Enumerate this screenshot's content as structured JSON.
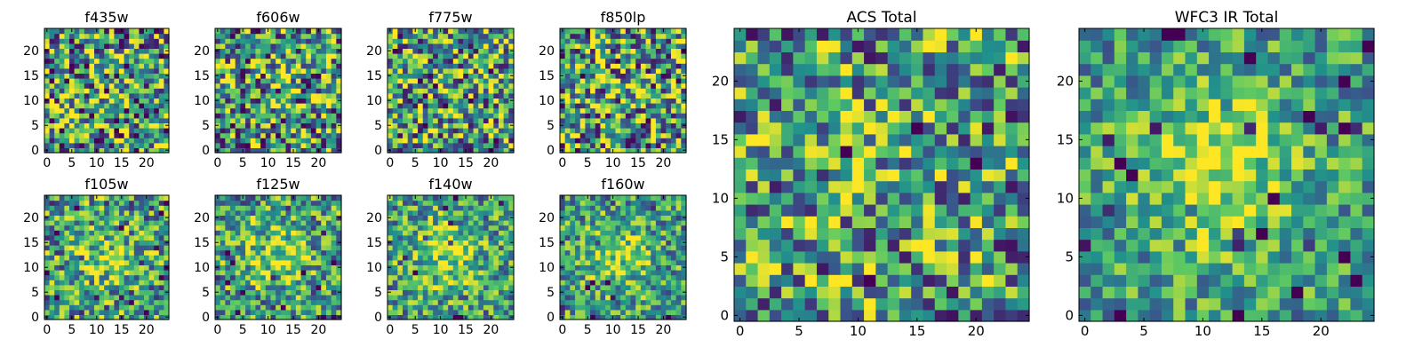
{
  "colormap": [
    "#440154",
    "#3b528b",
    "#21918c",
    "#5ec962",
    "#fde725"
  ],
  "chart_data": [
    {
      "type": "heatmap",
      "title": "f435w",
      "xlabel": "",
      "ylabel": "",
      "xlim": [
        0,
        24
      ],
      "ylim": [
        0,
        24
      ],
      "xticks": [
        0,
        5,
        10,
        15,
        20
      ],
      "yticks": [
        0,
        5,
        10,
        15,
        20
      ],
      "grid": false,
      "size": 25,
      "seed": 11,
      "center_strength": 0.0
    },
    {
      "type": "heatmap",
      "title": "f606w",
      "xlabel": "",
      "ylabel": "",
      "xlim": [
        0,
        24
      ],
      "ylim": [
        0,
        24
      ],
      "xticks": [
        0,
        5,
        10,
        15,
        20
      ],
      "yticks": [
        0,
        5,
        10,
        15,
        20
      ],
      "grid": false,
      "size": 25,
      "seed": 23,
      "center_strength": 0.05
    },
    {
      "type": "heatmap",
      "title": "f775w",
      "xlabel": "",
      "ylabel": "",
      "xlim": [
        0,
        24
      ],
      "ylim": [
        0,
        24
      ],
      "xticks": [
        0,
        5,
        10,
        15,
        20
      ],
      "yticks": [
        0,
        5,
        10,
        15,
        20
      ],
      "grid": false,
      "size": 25,
      "seed": 37,
      "center_strength": 0.08
    },
    {
      "type": "heatmap",
      "title": "f850lp",
      "xlabel": "",
      "ylabel": "",
      "xlim": [
        0,
        24
      ],
      "ylim": [
        0,
        24
      ],
      "xticks": [
        0,
        5,
        10,
        15,
        20
      ],
      "yticks": [
        0,
        5,
        10,
        15,
        20
      ],
      "grid": false,
      "size": 25,
      "seed": 41,
      "center_strength": 0.05
    },
    {
      "type": "heatmap",
      "title": "ACS Total",
      "xlabel": "",
      "ylabel": "",
      "xlim": [
        0,
        24
      ],
      "ylim": [
        0,
        24
      ],
      "xticks": [
        0,
        5,
        10,
        15,
        20
      ],
      "yticks": [
        0,
        5,
        10,
        15,
        20
      ],
      "grid": false,
      "size": 25,
      "seed": 53,
      "center_strength": 0.12
    },
    {
      "type": "heatmap",
      "title": "WFC3 IR Total",
      "xlabel": "",
      "ylabel": "",
      "xlim": [
        0,
        24
      ],
      "ylim": [
        0,
        24
      ],
      "xticks": [
        0,
        5,
        10,
        15,
        20
      ],
      "yticks": [
        0,
        5,
        10,
        15,
        20
      ],
      "grid": false,
      "size": 25,
      "seed": 67,
      "center_strength": 0.45
    },
    {
      "type": "heatmap",
      "title": "f105w",
      "xlabel": "",
      "ylabel": "",
      "xlim": [
        0,
        24
      ],
      "ylim": [
        0,
        24
      ],
      "xticks": [
        0,
        5,
        10,
        15,
        20
      ],
      "yticks": [
        0,
        5,
        10,
        15,
        20
      ],
      "grid": false,
      "size": 25,
      "seed": 71,
      "center_strength": 0.25
    },
    {
      "type": "heatmap",
      "title": "f125w",
      "xlabel": "",
      "ylabel": "",
      "xlim": [
        0,
        24
      ],
      "ylim": [
        0,
        24
      ],
      "xticks": [
        0,
        5,
        10,
        15,
        20
      ],
      "yticks": [
        0,
        5,
        10,
        15,
        20
      ],
      "grid": false,
      "size": 25,
      "seed": 83,
      "center_strength": 0.3
    },
    {
      "type": "heatmap",
      "title": "f140w",
      "xlabel": "",
      "ylabel": "",
      "xlim": [
        0,
        24
      ],
      "ylim": [
        0,
        24
      ],
      "xticks": [
        0,
        5,
        10,
        15,
        20
      ],
      "yticks": [
        0,
        5,
        10,
        15,
        20
      ],
      "grid": false,
      "size": 25,
      "seed": 97,
      "center_strength": 0.35
    },
    {
      "type": "heatmap",
      "title": "f160w",
      "xlabel": "",
      "ylabel": "",
      "xlim": [
        0,
        24
      ],
      "ylim": [
        0,
        24
      ],
      "xticks": [
        0,
        5,
        10,
        15,
        20
      ],
      "yticks": [
        0,
        5,
        10,
        15,
        20
      ],
      "grid": false,
      "size": 25,
      "seed": 101,
      "center_strength": 0.35
    }
  ]
}
